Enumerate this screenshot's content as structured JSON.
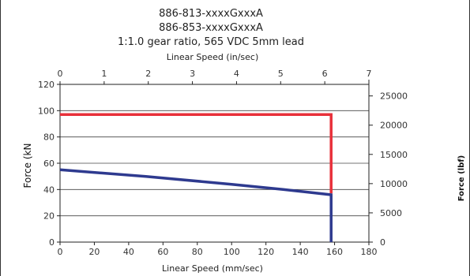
{
  "chart_data": {
    "type": "line",
    "titles": [
      "886-813-xxxxGxxxA",
      "886-853-xxxxGxxxA",
      "1:1.0 gear ratio, 565 VDC 5mm lead"
    ],
    "xlabel": "Linear Speed (mm/sec)",
    "x2label": "Linear Speed (in/sec)",
    "ylabel": "Force (kN",
    "y2label": "Force (lbf)",
    "xlim": [
      0,
      180
    ],
    "ylim": [
      0,
      120
    ],
    "x2lim": [
      0,
      7
    ],
    "y2lim": [
      0,
      26976
    ],
    "x_ticks": [
      0,
      20,
      40,
      60,
      80,
      100,
      120,
      140,
      160,
      180
    ],
    "y_ticks": [
      0,
      20,
      40,
      60,
      80,
      100,
      120
    ],
    "x2_ticks": [
      0,
      1,
      2,
      3,
      4,
      5,
      6,
      7
    ],
    "y2_ticks": [
      0,
      5000,
      10000,
      15000,
      20000,
      25000
    ],
    "grid": true,
    "series": [
      {
        "color": "#e8303a",
        "x": [
          0,
          158,
          158
        ],
        "y": [
          97,
          97,
          37
        ]
      },
      {
        "color": "#2e3a8f",
        "x": [
          0,
          50,
          100,
          130,
          158,
          158
        ],
        "y": [
          55,
          50,
          44,
          40,
          36,
          0
        ]
      }
    ]
  }
}
